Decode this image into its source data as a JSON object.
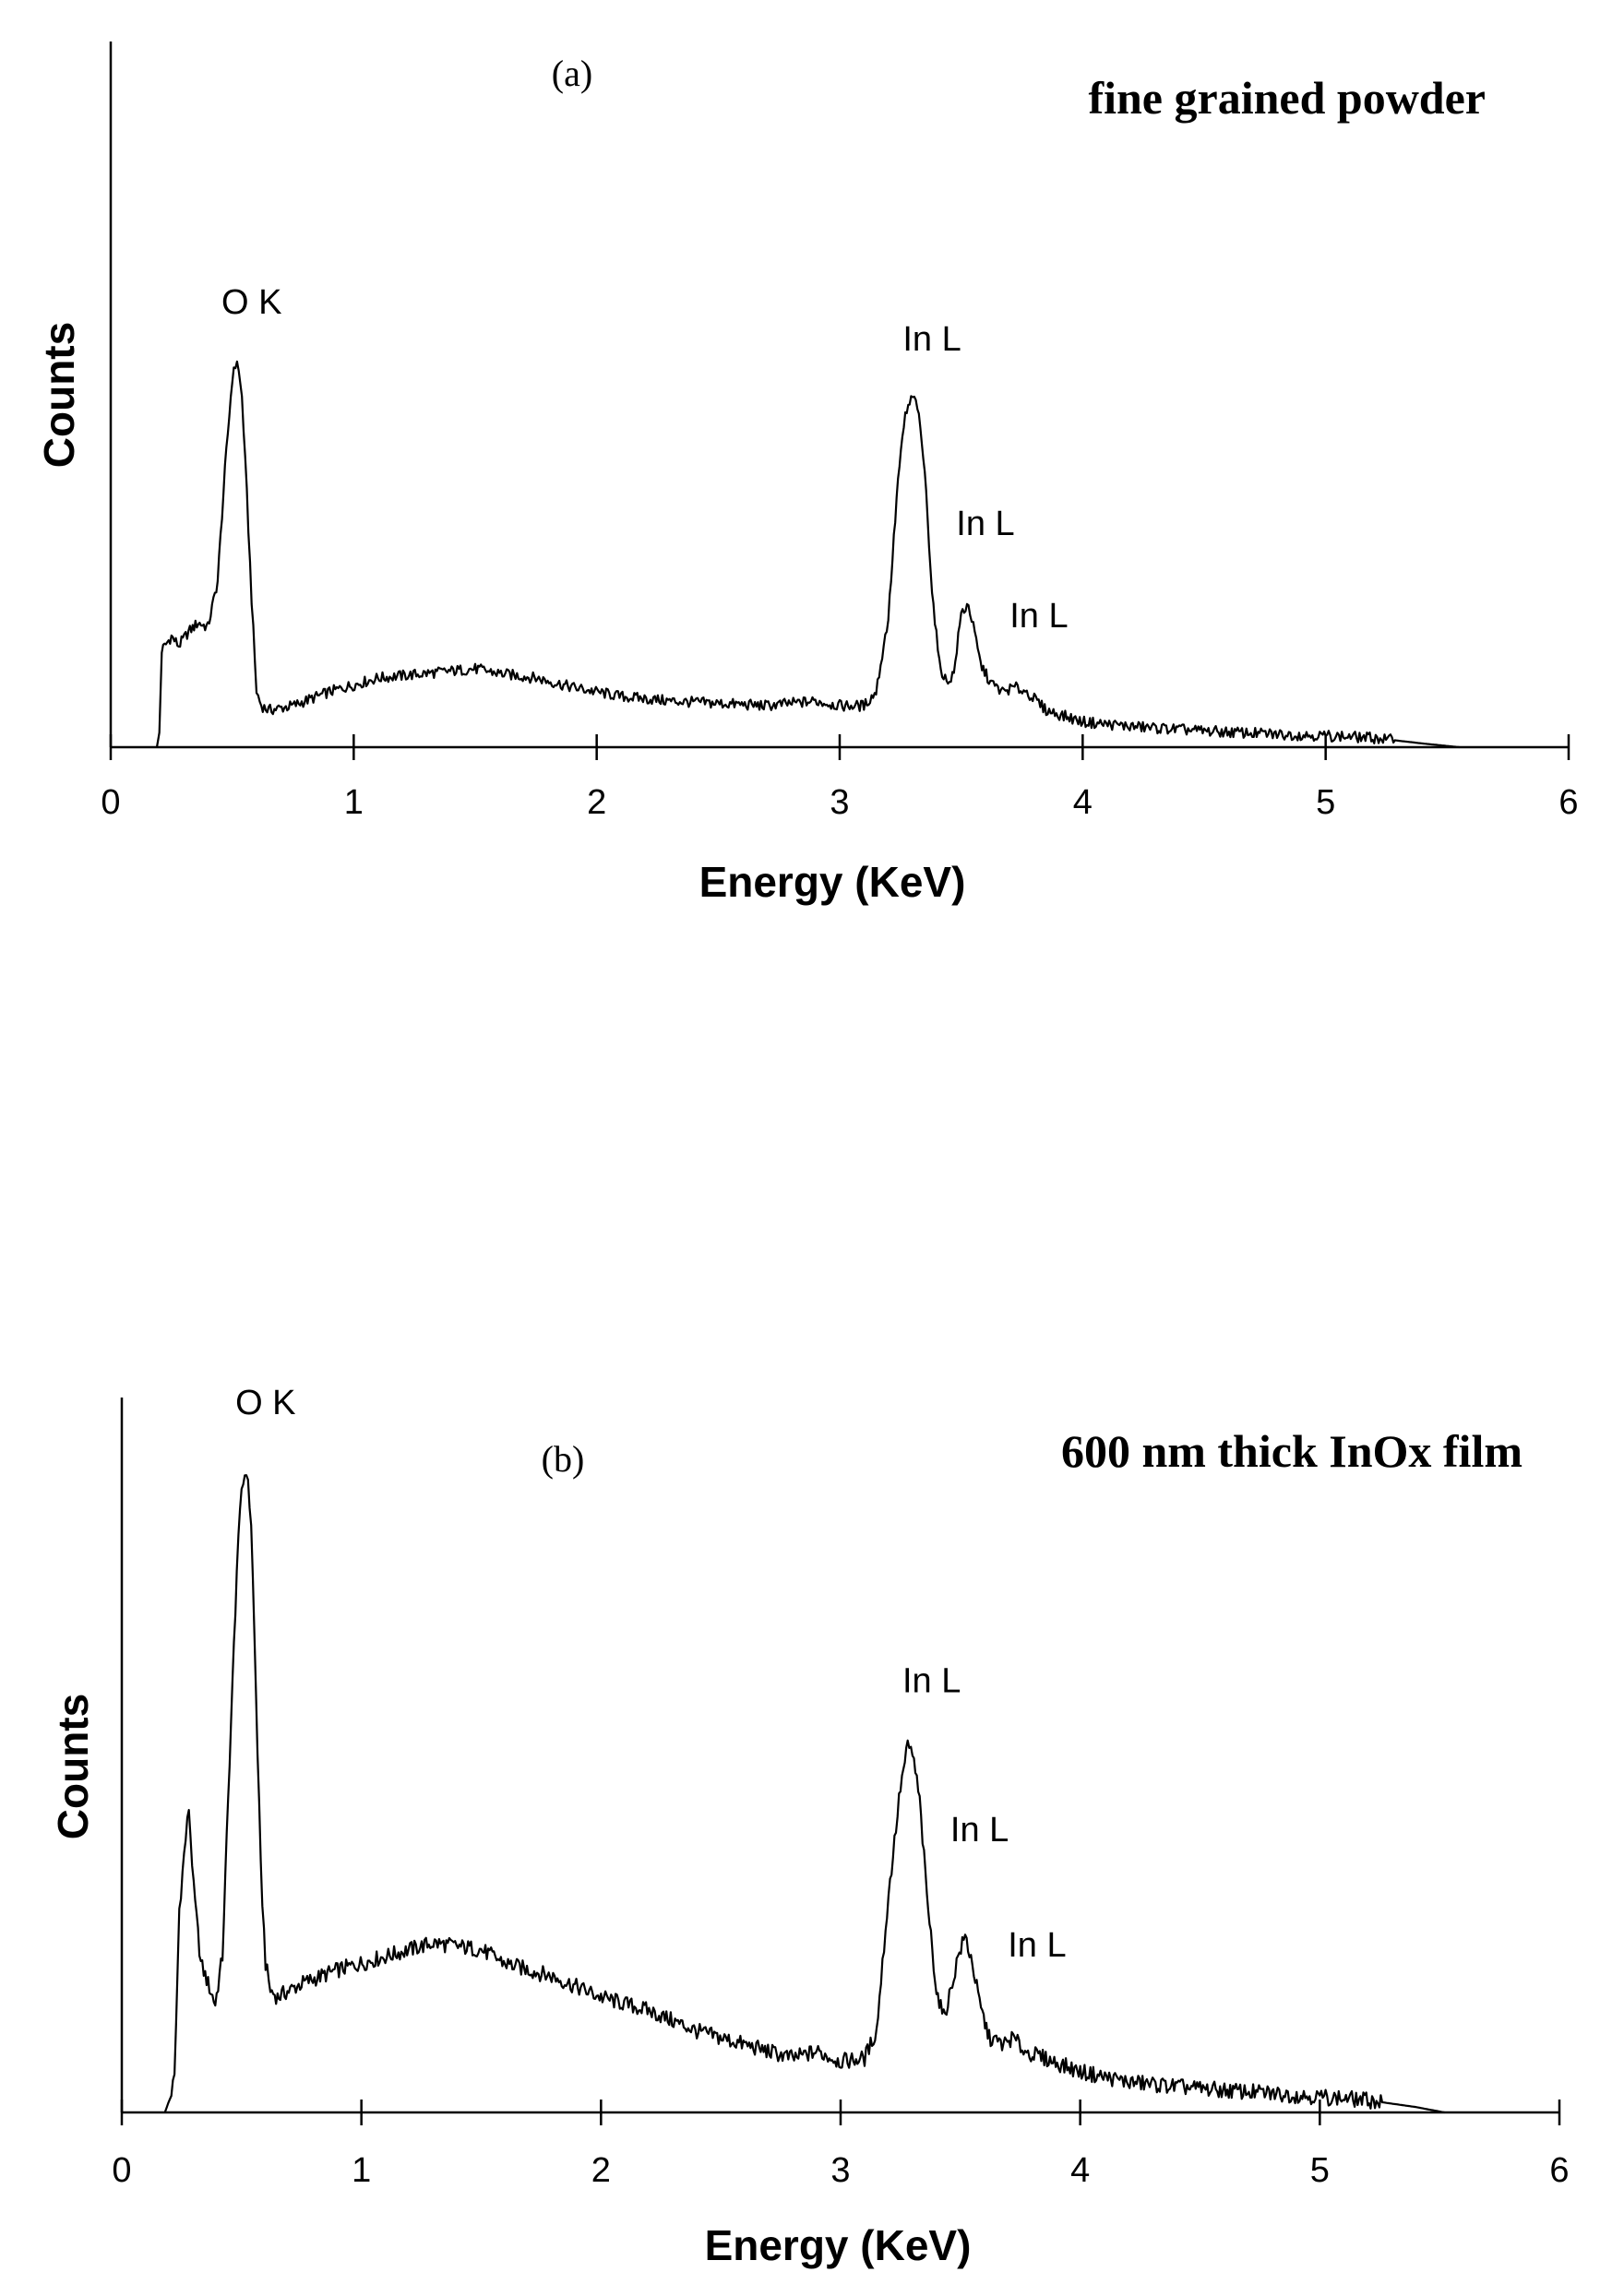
{
  "chart_data": [
    {
      "type": "line",
      "panel_label": "(a)",
      "annotation_title": "fine grained powder",
      "xlabel": "Energy (KeV)",
      "ylabel": "Counts",
      "xlim": [
        0,
        6
      ],
      "ylim": [
        0,
        100
      ],
      "x_ticks": [
        "0",
        "1",
        "2",
        "3",
        "4",
        "5",
        "6"
      ],
      "series": [
        {
          "x": [
            0.19,
            0.2,
            0.21,
            0.25,
            0.28,
            0.32,
            0.36,
            0.4,
            0.44,
            0.47,
            0.5,
            0.52,
            0.54,
            0.56,
            0.58,
            0.6,
            0.62,
            0.65,
            0.75,
            0.9,
            1.1,
            1.3,
            1.5,
            1.6,
            1.75,
            1.9,
            2.1,
            2.3,
            2.5,
            2.7,
            2.9,
            3.0,
            3.1,
            3.15,
            3.2,
            3.24,
            3.27,
            3.3,
            3.32,
            3.35,
            3.38,
            3.41,
            3.44,
            3.47,
            3.5,
            3.53,
            3.55,
            3.58,
            3.62,
            3.67,
            3.72,
            3.77,
            3.85,
            4.0,
            4.2,
            4.5,
            4.8,
            5.0,
            5.2,
            5.4,
            5.55
          ],
          "y": [
            0,
            3,
            21,
            24,
            22,
            25,
            27,
            26,
            36,
            60,
            80,
            84,
            76,
            55,
            32,
            12,
            9,
            8,
            9,
            12,
            15,
            16,
            17,
            16,
            15,
            13,
            11,
            10,
            9.5,
            9,
            10,
            9,
            9,
            12,
            28,
            58,
            72,
            76,
            74,
            60,
            34,
            18,
            14,
            16,
            29,
            31,
            26,
            18,
            14,
            12,
            13,
            12,
            8,
            5.5,
            4.5,
            3.5,
            2.8,
            2.5,
            2,
            0.8,
            0
          ],
          "noise": 1.2
        }
      ],
      "annotations": [
        {
          "text": "O K",
          "x": 0.58,
          "y": 94
        },
        {
          "text": "In L",
          "x": 3.38,
          "y": 86
        },
        {
          "text": "In L",
          "x": 3.6,
          "y": 46
        },
        {
          "text": "In L",
          "x": 3.82,
          "y": 26
        }
      ]
    },
    {
      "type": "line",
      "panel_label": "(b)",
      "annotation_title": "600 nm thick InOx film",
      "xlabel": "Energy (KeV)",
      "ylabel": "Counts",
      "xlim": [
        0,
        6
      ],
      "ylim": [
        0,
        100
      ],
      "x_ticks": [
        "0",
        "1",
        "2",
        "3",
        "4",
        "5",
        "6"
      ],
      "series": [
        {
          "x": [
            0.18,
            0.2,
            0.22,
            0.24,
            0.26,
            0.28,
            0.3,
            0.33,
            0.36,
            0.39,
            0.42,
            0.45,
            0.48,
            0.5,
            0.52,
            0.54,
            0.56,
            0.58,
            0.6,
            0.62,
            0.65,
            0.75,
            0.9,
            1.1,
            1.3,
            1.5,
            1.6,
            1.8,
            2.0,
            2.2,
            2.4,
            2.6,
            2.8,
            2.9,
            3.0,
            3.1,
            3.15,
            3.2,
            3.25,
            3.28,
            3.3,
            3.33,
            3.36,
            3.4,
            3.43,
            3.46,
            3.49,
            3.52,
            3.55,
            3.58,
            3.62,
            3.68,
            3.72,
            3.77,
            3.85,
            4.0,
            4.2,
            4.5,
            4.8,
            5.0,
            5.2,
            5.4,
            5.52
          ],
          "y": [
            0,
            2,
            5,
            30,
            38,
            45,
            33,
            22,
            19,
            16,
            23,
            52,
            80,
            92,
            95,
            87,
            62,
            36,
            22,
            18,
            17,
            19,
            21,
            23,
            25,
            24,
            22,
            20,
            17,
            15,
            12,
            10,
            8,
            9,
            7.5,
            8,
            12,
            32,
            48,
            54,
            53,
            46,
            32,
            18,
            14,
            18,
            23,
            26,
            22,
            16,
            11,
            10,
            11,
            9,
            8,
            6,
            4.5,
            3.5,
            2.8,
            2.3,
            1.8,
            0.8,
            0
          ],
          "noise": 1.2
        }
      ],
      "annotations": [
        {
          "text": "O K",
          "x": 0.6,
          "y": 103
        },
        {
          "text": "In L",
          "x": 3.38,
          "y": 62
        },
        {
          "text": "In L",
          "x": 3.58,
          "y": 40
        },
        {
          "text": "In L",
          "x": 3.82,
          "y": 23
        }
      ]
    }
  ]
}
